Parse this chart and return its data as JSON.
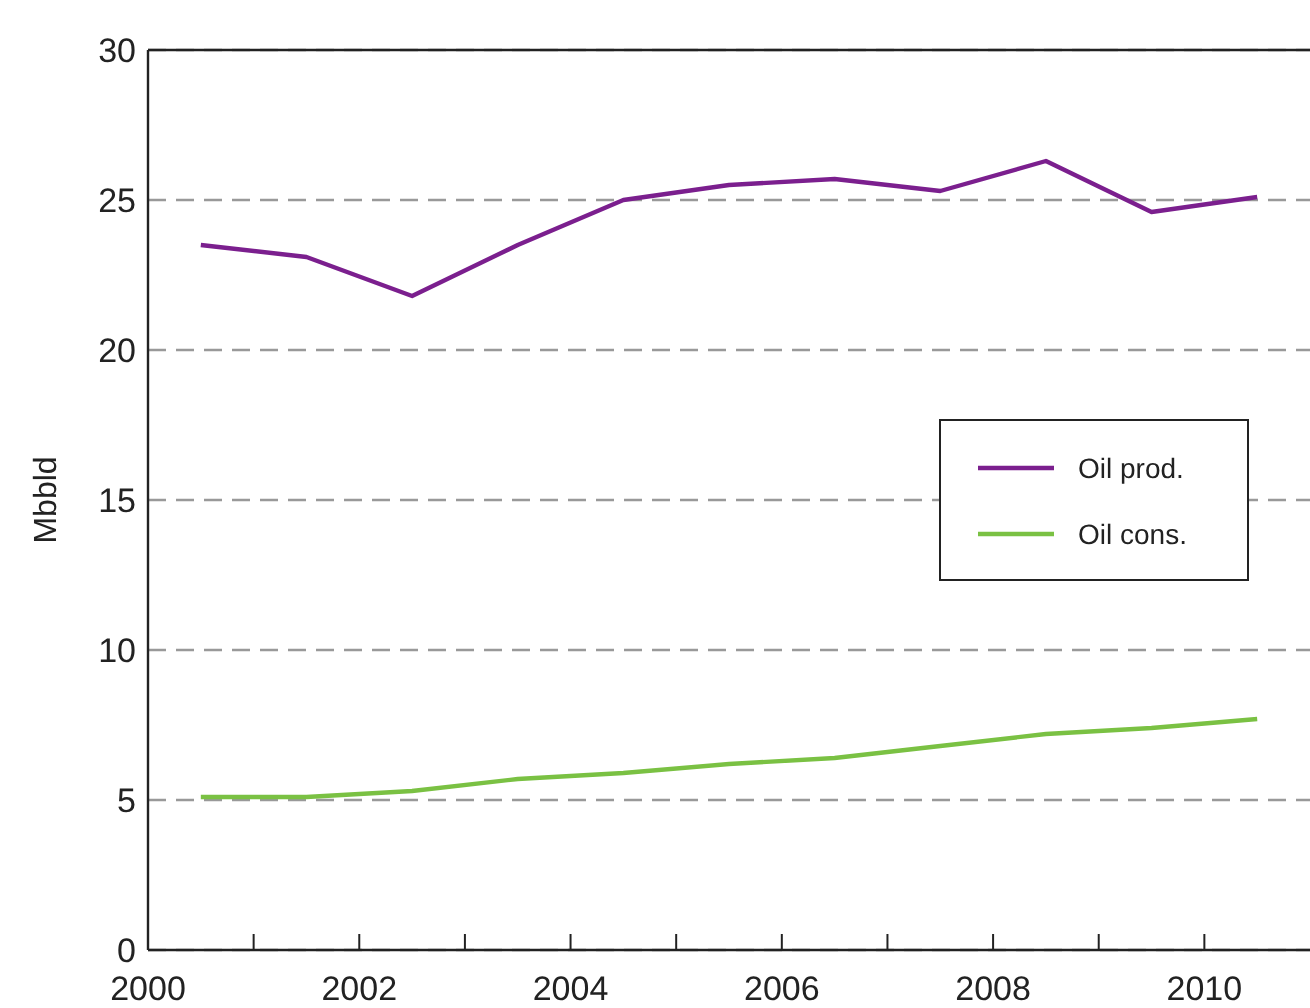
{
  "chart_data": {
    "type": "line",
    "ylabel": "Mbbld",
    "x": [
      2000.5,
      2001.5,
      2002.5,
      2003.5,
      2004.5,
      2005.5,
      2006.5,
      2007.5,
      2008.5,
      2009.5,
      2010.5
    ],
    "series": [
      {
        "name": "Oil prod.",
        "color": "#7b1f8e",
        "values": [
          23.5,
          23.1,
          21.8,
          23.5,
          25.0,
          25.5,
          25.7,
          25.3,
          26.3,
          24.6,
          25.1
        ]
      },
      {
        "name": "Oil cons.",
        "color": "#7ac143",
        "values": [
          5.1,
          5.1,
          5.3,
          5.7,
          5.9,
          6.2,
          6.4,
          6.8,
          7.2,
          7.4,
          7.7
        ]
      }
    ],
    "xlim": [
      2000,
      2011
    ],
    "xticks": [
      2000,
      {
        "value": 2001,
        "label": null
      },
      2002,
      {
        "value": 2003,
        "label": null
      },
      2004,
      {
        "value": 2005,
        "label": null
      },
      2006,
      {
        "value": 2007,
        "label": null
      },
      2008,
      {
        "value": 2009,
        "label": null
      },
      2010
    ],
    "ylim": [
      0,
      30
    ],
    "yticks": [
      0,
      5,
      10,
      15,
      20,
      25,
      30
    ],
    "grid": "y",
    "line_style": "solid",
    "legend": "right"
  }
}
